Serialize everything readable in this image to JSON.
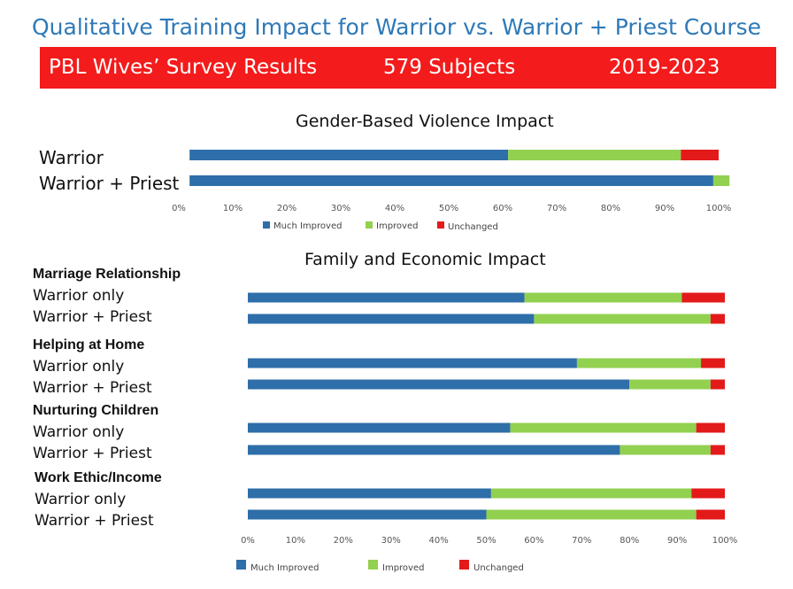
{
  "header": {
    "title": "Qualitative Training Impact for Warrior vs. Warrior + Priest Course",
    "banner_left": "PBL Wives’ Survey  Results",
    "banner_mid": "579 Subjects",
    "banner_right": "2019-2023",
    "banner_color": "#f31b1b",
    "title_color": "#2e79b8"
  },
  "chart_data": [
    {
      "type": "bar",
      "orientation": "horizontal",
      "stacked": "percent",
      "title": "Gender-Based Violence Impact",
      "categories": [
        "Warrior",
        "Warrior + Priest"
      ],
      "series": [
        {
          "name": "Much Improved",
          "color": "#2e6ea9",
          "values": [
            0.59,
            0.97
          ]
        },
        {
          "name": "Improved",
          "color": "#92d050",
          "values": [
            0.32,
            0.03
          ]
        },
        {
          "name": "Unchanged",
          "color": "#e31a1a",
          "values": [
            0.07,
            0.0
          ]
        }
      ],
      "start_offsets": [
        0.02,
        0.02
      ],
      "xlim": [
        0,
        1
      ],
      "xticks": [
        "0%",
        "10%",
        "20%",
        "30%",
        "40%",
        "50%",
        "60%",
        "70%",
        "80%",
        "90%",
        "100%"
      ],
      "legend_position": "bottom",
      "legend_labels": [
        "Much Improved",
        "Improved",
        "Unchanged"
      ]
    },
    {
      "type": "bar",
      "orientation": "horizontal",
      "stacked": "percent",
      "title": "Family and Economic Impact",
      "groups": [
        {
          "label": "Marriage Relationship",
          "rows": [
            {
              "label": "Warrior only",
              "values": [
                0.58,
                0.33,
                0.09
              ]
            },
            {
              "label": "Warrior + Priest",
              "values": [
                0.6,
                0.37,
                0.03
              ]
            }
          ]
        },
        {
          "label": "Helping at Home",
          "rows": [
            {
              "label": "Warrior only",
              "values": [
                0.69,
                0.26,
                0.05
              ]
            },
            {
              "label": "Warrior + Priest",
              "values": [
                0.8,
                0.17,
                0.03
              ]
            }
          ]
        },
        {
          "label": "Nurturing Children",
          "rows": [
            {
              "label": "Warrior only",
              "values": [
                0.55,
                0.39,
                0.06
              ]
            },
            {
              "label": "Warrior + Priest",
              "values": [
                0.78,
                0.19,
                0.03
              ]
            }
          ]
        },
        {
          "label": "Work Ethic/Income",
          "rows": [
            {
              "label": "Warrior only",
              "values": [
                0.51,
                0.42,
                0.07
              ]
            },
            {
              "label": "Warrior + Priest",
              "values": [
                0.5,
                0.44,
                0.06
              ]
            }
          ]
        }
      ],
      "series": [
        {
          "name": "Much Improved",
          "color": "#2e6ea9"
        },
        {
          "name": "Improved",
          "color": "#92d050"
        },
        {
          "name": "Unchanged",
          "color": "#e31a1a"
        }
      ],
      "xlim": [
        0,
        1
      ],
      "xticks": [
        "0%",
        "10%",
        "20%",
        "30%",
        "40%",
        "50%",
        "60%",
        "70%",
        "80%",
        "90%",
        "100%"
      ],
      "legend_position": "bottom",
      "legend_labels": [
        "Much Improved",
        "Improved",
        "Unchanged"
      ]
    }
  ]
}
